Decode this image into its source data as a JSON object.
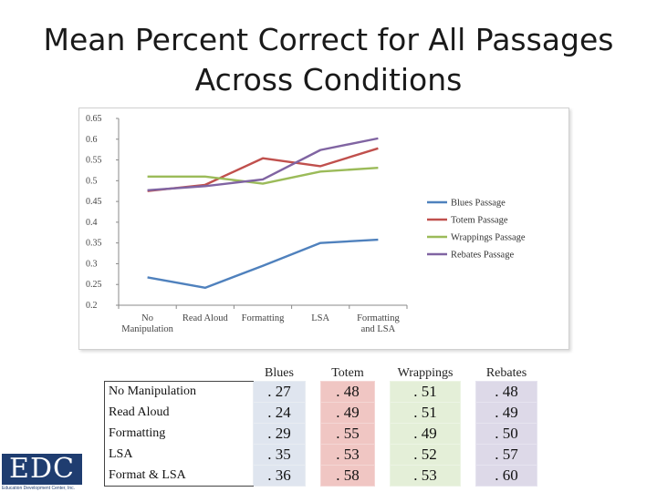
{
  "slide": {
    "title_line1": "Mean Percent Correct for All Passages",
    "title_line2": "Across Conditions"
  },
  "chart_data": {
    "type": "line",
    "categories": [
      "No Manipulation",
      "Read Aloud",
      "Formatting",
      "LSA",
      "Formatting and LSA"
    ],
    "category_labels": [
      [
        "No",
        "Manipulation"
      ],
      [
        "Read Aloud"
      ],
      [
        "Formatting"
      ],
      [
        "LSA"
      ],
      [
        "Formatting",
        "and LSA"
      ]
    ],
    "series": [
      {
        "name": "Blues Passage",
        "color": "#4f81bd",
        "values": [
          0.267,
          0.242,
          0.295,
          0.35,
          0.358
        ]
      },
      {
        "name": "Totem Passage",
        "color": "#c0504d",
        "values": [
          0.475,
          0.49,
          0.554,
          0.535,
          0.578
        ]
      },
      {
        "name": "Wrappings Passage",
        "color": "#9bbb59",
        "values": [
          0.51,
          0.51,
          0.493,
          0.522,
          0.531
        ]
      },
      {
        "name": "Rebates Passage",
        "color": "#8064a2",
        "values": [
          0.477,
          0.487,
          0.503,
          0.574,
          0.602
        ]
      }
    ],
    "y_ticks": [
      "0.65",
      "0.6",
      "0.55",
      "0.5",
      "0.45",
      "0.4",
      "0.35",
      "0.3",
      "0.25",
      "0.2"
    ],
    "ylim": [
      0.2,
      0.65
    ],
    "xlabel": "",
    "ylabel": "",
    "legend": "right"
  },
  "table": {
    "headers": [
      "Blues",
      "Totem",
      "Wrappings",
      "Rebates"
    ],
    "rows": [
      {
        "label": "No Manipulation",
        "values": [
          ". 27",
          ". 48",
          ". 51",
          ". 48"
        ]
      },
      {
        "label": "Read Aloud",
        "values": [
          ". 24",
          ". 49",
          ". 51",
          ". 49"
        ]
      },
      {
        "label": "Formatting",
        "values": [
          ". 29",
          ". 55",
          ". 49",
          ". 50"
        ]
      },
      {
        "label": "LSA",
        "values": [
          ". 35",
          ". 53",
          ". 52",
          ". 57"
        ]
      },
      {
        "label": "Format & LSA",
        "values": [
          ". 36",
          ". 58",
          ". 53",
          ". 60"
        ]
      }
    ]
  },
  "logo": {
    "text": "EDC",
    "subtitle": "Education Development Center, Inc."
  }
}
